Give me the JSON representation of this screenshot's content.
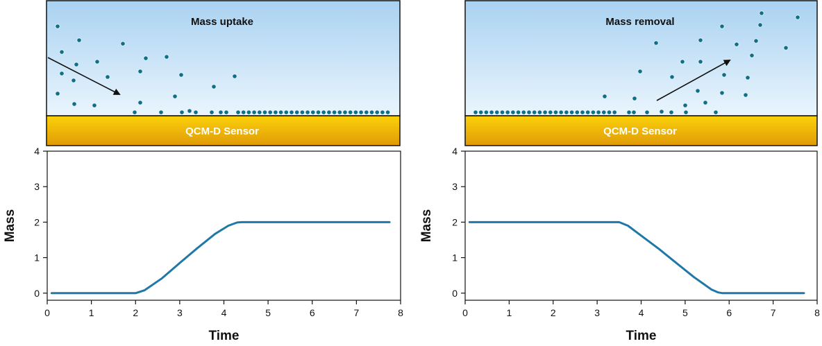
{
  "colors": {
    "liquid_top": "#a9d2f1",
    "liquid_bottom": "#eaf5fd",
    "sensor_top": "#fcd20a",
    "sensor_bottom": "#e09a07",
    "particle": "#0f6f86",
    "curve": "#1f78a8"
  },
  "panels": [
    {
      "id": "uptake",
      "scene": {
        "title": "Mass uptake",
        "sensor_label": "QCM-D Sensor",
        "arrow_direction": "down-right"
      },
      "chart_data": {
        "type": "line",
        "xlabel": "Time",
        "ylabel": "Mass",
        "xlim": [
          0,
          8
        ],
        "ylim": [
          -0.2,
          4
        ],
        "xticks": [
          "0",
          "1",
          "2",
          "3",
          "4",
          "5",
          "6",
          "7",
          "8"
        ],
        "yticks": [
          "0",
          "1",
          "2",
          "3",
          "4"
        ],
        "grid": false,
        "series": [
          {
            "x": [
              0.1,
              2.0,
              2.2,
              2.6,
              3.0,
              3.4,
              3.8,
              4.1,
              4.3,
              4.4,
              5.0,
              6.0,
              7.0,
              7.75
            ],
            "values": [
              0,
              0,
              0.08,
              0.42,
              0.85,
              1.27,
              1.67,
              1.9,
              1.99,
              2.0,
              2.0,
              2.0,
              2.0,
              2.0
            ]
          }
        ]
      }
    },
    {
      "id": "removal",
      "scene": {
        "title": "Mass removal",
        "sensor_label": "QCM-D Sensor",
        "arrow_direction": "up-right"
      },
      "chart_data": {
        "type": "line",
        "xlabel": "Time",
        "ylabel": "Mass",
        "xlim": [
          0,
          8
        ],
        "ylim": [
          -0.2,
          4
        ],
        "xticks": [
          "0",
          "1",
          "2",
          "3",
          "4",
          "5",
          "6",
          "7",
          "8"
        ],
        "yticks": [
          "0",
          "1",
          "2",
          "3",
          "4"
        ],
        "grid": false,
        "series": [
          {
            "x": [
              0.1,
              1.0,
              2.0,
              3.0,
              3.5,
              3.7,
              4.0,
              4.4,
              4.8,
              5.2,
              5.6,
              5.75,
              5.85,
              6.5,
              7.0,
              7.7
            ],
            "values": [
              2.0,
              2.0,
              2.0,
              2.0,
              2.0,
              1.9,
              1.62,
              1.25,
              0.85,
              0.45,
              0.1,
              0.02,
              0,
              0,
              0,
              0
            ]
          }
        ]
      }
    }
  ]
}
